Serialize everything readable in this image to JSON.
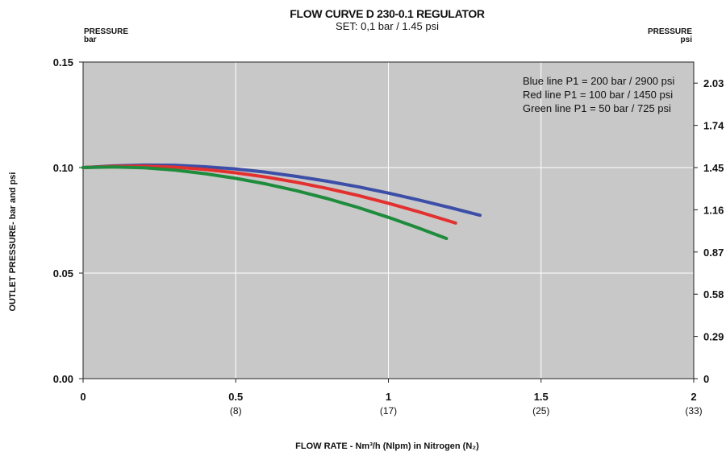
{
  "chart_data": {
    "type": "line",
    "title": "FLOW CURVE D 230-0.1 REGULATOR",
    "subtitle": "SET: 0,1 bar / 1.45 psi",
    "left_axis_header": [
      "PRESSURE",
      "bar"
    ],
    "right_axis_header": [
      "PRESSURE",
      "psi"
    ],
    "ylabel": "OUTLET PRESSURE- bar and psi",
    "xlabel": "FLOW RATE - Nm³/h (Nlpm) in Nitrogen (N₂)",
    "xlim": [
      0,
      2
    ],
    "ylim": [
      0,
      0.15
    ],
    "x_ticks": [
      "0",
      "0.5",
      "1",
      "1.5",
      "2"
    ],
    "x_ticks_secondary": [
      "",
      "(8)",
      "(17)",
      "(25)",
      "(33)"
    ],
    "y_ticks_left": [
      "0.00",
      "0.05",
      "0.10",
      "0.15"
    ],
    "y_ticks_right": [
      "0",
      "0.29",
      "0.58",
      "0.87",
      "1.16",
      "1.45",
      "1.74",
      "2.03"
    ],
    "grid": true,
    "background": "#c8c8c8",
    "legend_placement": "top-right",
    "legend_text": [
      "Blue line P1 = 200 bar / 2900 psi",
      "Red line P1 = 100 bar / 1450 psi",
      "Green line P1 = 50 bar / 725 psi"
    ],
    "series": [
      {
        "color": "#3c4ea8",
        "x": [
          0,
          0.1,
          0.2,
          0.3,
          0.4,
          0.5,
          0.6,
          0.7,
          0.8,
          0.9,
          1.0,
          1.1,
          1.2,
          1.3
        ],
        "y": [
          0.1,
          0.1008,
          0.1012,
          0.1011,
          0.1004,
          0.0993,
          0.0978,
          0.0958,
          0.0935,
          0.0909,
          0.0879,
          0.0846,
          0.0811,
          0.0774
        ]
      },
      {
        "color": "#e3302f",
        "x": [
          0,
          0.1,
          0.2,
          0.3,
          0.4,
          0.5,
          0.6,
          0.7,
          0.8,
          0.9,
          1.0,
          1.1,
          1.2,
          1.22
        ],
        "y": [
          0.1,
          0.1006,
          0.1007,
          0.1002,
          0.0991,
          0.0975,
          0.0955,
          0.093,
          0.0901,
          0.0868,
          0.0831,
          0.079,
          0.0746,
          0.0737
        ]
      },
      {
        "color": "#1e8c3c",
        "x": [
          0,
          0.1,
          0.2,
          0.3,
          0.4,
          0.5,
          0.6,
          0.7,
          0.8,
          0.9,
          1.0,
          1.1,
          1.19
        ],
        "y": [
          0.1,
          0.1003,
          0.0999,
          0.0988,
          0.0971,
          0.0949,
          0.0922,
          0.089,
          0.0853,
          0.0811,
          0.0764,
          0.0713,
          0.0664
        ]
      }
    ]
  }
}
